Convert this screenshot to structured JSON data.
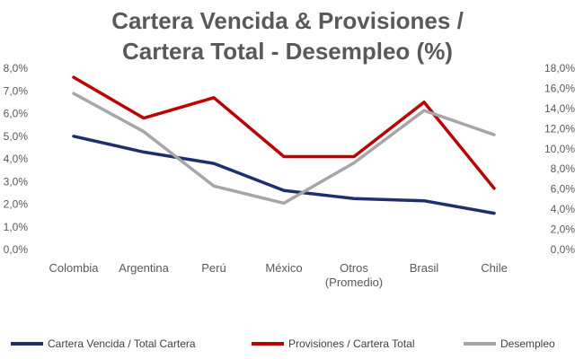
{
  "chart_data": {
    "type": "line",
    "title_lines": [
      "Cartera Vencida & Provisiones /",
      "Cartera Total - Desempleo (%)"
    ],
    "categories": [
      [
        "Colombia"
      ],
      [
        "Argentina"
      ],
      [
        "Perú"
      ],
      [
        "México"
      ],
      [
        "Otros",
        "(Promedio)"
      ],
      [
        "Brasil"
      ],
      [
        "Chile"
      ]
    ],
    "y_left": {
      "min": 0,
      "max": 8,
      "step": 1,
      "ticks": [
        "0,0%",
        "1,0%",
        "2,0%",
        "3,0%",
        "4,0%",
        "5,0%",
        "6,0%",
        "7,0%",
        "8,0%"
      ]
    },
    "y_right": {
      "min": 0,
      "max": 18,
      "step": 2,
      "ticks": [
        "0,0%",
        "2,0%",
        "4,0%",
        "6,0%",
        "8,0%",
        "10,0%",
        "12,0%",
        "14,0%",
        "16,0%",
        "18,0%"
      ]
    },
    "grid": false,
    "legend_position": "bottom",
    "series": [
      {
        "name": "Cartera Vencida / Total Cartera",
        "axis": "left",
        "color": "#1f2f6e",
        "values": [
          5.0,
          4.3,
          3.8,
          2.6,
          2.25,
          2.15,
          1.6
        ]
      },
      {
        "name": "Provisiones / Cartera Total",
        "axis": "left",
        "color": "#c00000",
        "values": [
          7.6,
          5.8,
          6.7,
          4.1,
          4.1,
          6.5,
          2.7
        ]
      },
      {
        "name": "Desempleo",
        "axis": "right",
        "color": "#a6a6a6",
        "values": [
          15.5,
          11.7,
          6.3,
          4.6,
          8.6,
          13.8,
          11.4
        ]
      }
    ]
  }
}
